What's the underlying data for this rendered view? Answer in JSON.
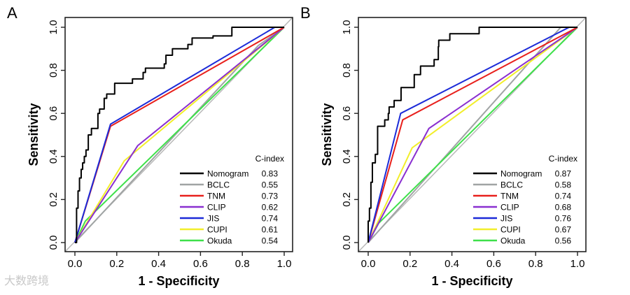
{
  "watermark": "大数跨境",
  "chart_data": [
    {
      "panel_label": "A",
      "type": "line",
      "xlabel": "1 - Specificity",
      "ylabel": "Sensitivity",
      "xlim": [
        0,
        1
      ],
      "ylim": [
        0,
        1
      ],
      "xticks": [
        "0.0",
        "0.2",
        "0.4",
        "0.6",
        "0.8",
        "1.0"
      ],
      "yticks": [
        "0.0",
        "0.2",
        "0.4",
        "0.6",
        "0.8",
        "1.0"
      ],
      "legend_title": "C-index",
      "legend_position": "bottom-right",
      "series": [
        {
          "name": "Nomogram",
          "cindex": "0.83",
          "color": "#000000",
          "step": true,
          "points": [
            [
              0,
              0
            ],
            [
              0.008,
              0.16
            ],
            [
              0.015,
              0.24
            ],
            [
              0.022,
              0.3
            ],
            [
              0.03,
              0.34
            ],
            [
              0.037,
              0.37
            ],
            [
              0.045,
              0.4
            ],
            [
              0.053,
              0.43
            ],
            [
              0.064,
              0.5
            ],
            [
              0.079,
              0.53
            ],
            [
              0.11,
              0.6
            ],
            [
              0.118,
              0.62
            ],
            [
              0.14,
              0.67
            ],
            [
              0.152,
              0.69
            ],
            [
              0.19,
              0.74
            ],
            [
              0.275,
              0.76
            ],
            [
              0.326,
              0.79
            ],
            [
              0.337,
              0.81
            ],
            [
              0.427,
              0.83
            ],
            [
              0.435,
              0.87
            ],
            [
              0.466,
              0.9
            ],
            [
              0.54,
              0.92
            ],
            [
              0.56,
              0.95
            ],
            [
              0.66,
              0.96
            ],
            [
              0.75,
              1.0
            ],
            [
              1,
              1
            ]
          ]
        },
        {
          "name": "BCLC",
          "cindex": "0.55",
          "color": "#a0a4a4",
          "points": [
            [
              0,
              0
            ],
            [
              0.876,
              0.915
            ],
            [
              1,
              1
            ]
          ]
        },
        {
          "name": "TNM",
          "cindex": "0.73",
          "color": "#e8201c",
          "points": [
            [
              0,
              0
            ],
            [
              0.17,
              0.54
            ],
            [
              1,
              1
            ]
          ]
        },
        {
          "name": "CLIP",
          "cindex": "0.62",
          "color": "#8a2fd0",
          "points": [
            [
              0,
              0
            ],
            [
              0.3,
              0.45
            ],
            [
              1,
              1
            ]
          ]
        },
        {
          "name": "JIS",
          "cindex": "0.74",
          "color": "#1c2bd8",
          "points": [
            [
              0,
              0
            ],
            [
              0.17,
              0.55
            ],
            [
              0.955,
              1
            ]
          ]
        },
        {
          "name": "CUPI",
          "cindex": "0.61",
          "color": "#f2ee2a",
          "points": [
            [
              0,
              0
            ],
            [
              0.236,
              0.38
            ],
            [
              0.31,
              0.44
            ],
            [
              1,
              1
            ]
          ]
        },
        {
          "name": "Okuda",
          "cindex": "0.54",
          "color": "#3ee04a",
          "points": [
            [
              0,
              0
            ],
            [
              0.05,
              0.1
            ],
            [
              1,
              1
            ]
          ]
        }
      ]
    },
    {
      "panel_label": "B",
      "type": "line",
      "xlabel": "1 - Specificity",
      "ylabel": "Sensitivity",
      "xlim": [
        0,
        1
      ],
      "ylim": [
        0,
        1
      ],
      "xticks": [
        "0.0",
        "0.2",
        "0.4",
        "0.6",
        "0.8",
        "1.0"
      ],
      "yticks": [
        "0.0",
        "0.2",
        "0.4",
        "0.6",
        "0.8",
        "1.0"
      ],
      "legend_title": "C-index",
      "legend_position": "bottom-right",
      "series": [
        {
          "name": "Nomogram",
          "cindex": "0.87",
          "color": "#000000",
          "step": true,
          "points": [
            [
              0,
              0
            ],
            [
              0,
              0.1
            ],
            [
              0.006,
              0.16
            ],
            [
              0.013,
              0.28
            ],
            [
              0.02,
              0.37
            ],
            [
              0.034,
              0.41
            ],
            [
              0.045,
              0.54
            ],
            [
              0.079,
              0.57
            ],
            [
              0.096,
              0.6
            ],
            [
              0.1,
              0.63
            ],
            [
              0.124,
              0.66
            ],
            [
              0.157,
              0.72
            ],
            [
              0.22,
              0.78
            ],
            [
              0.25,
              0.82
            ],
            [
              0.315,
              0.85
            ],
            [
              0.335,
              0.91
            ],
            [
              0.337,
              0.94
            ],
            [
              0.39,
              0.97
            ],
            [
              0.53,
              1.0
            ],
            [
              1,
              1
            ]
          ]
        },
        {
          "name": "BCLC",
          "cindex": "0.58",
          "color": "#a0a4a4",
          "points": [
            [
              0,
              0
            ],
            [
              0.92,
              1
            ],
            [
              1,
              1
            ]
          ]
        },
        {
          "name": "TNM",
          "cindex": "0.74",
          "color": "#e8201c",
          "points": [
            [
              0,
              0
            ],
            [
              0.165,
              0.57
            ],
            [
              1,
              1
            ]
          ]
        },
        {
          "name": "CLIP",
          "cindex": "0.68",
          "color": "#8a2fd0",
          "points": [
            [
              0,
              0
            ],
            [
              0.29,
              0.53
            ],
            [
              1,
              1
            ]
          ]
        },
        {
          "name": "JIS",
          "cindex": "0.76",
          "color": "#1c2bd8",
          "points": [
            [
              0,
              0
            ],
            [
              0.155,
              0.6
            ],
            [
              0.96,
              1
            ]
          ]
        },
        {
          "name": "CUPI",
          "cindex": "0.67",
          "color": "#f2ee2a",
          "points": [
            [
              0,
              0
            ],
            [
              0.21,
              0.44
            ],
            [
              1,
              1
            ]
          ]
        },
        {
          "name": "Okuda",
          "cindex": "0.56",
          "color": "#3ee04a",
          "points": [
            [
              0,
              0
            ],
            [
              0.05,
              0.09
            ],
            [
              1,
              1
            ]
          ]
        }
      ]
    }
  ]
}
